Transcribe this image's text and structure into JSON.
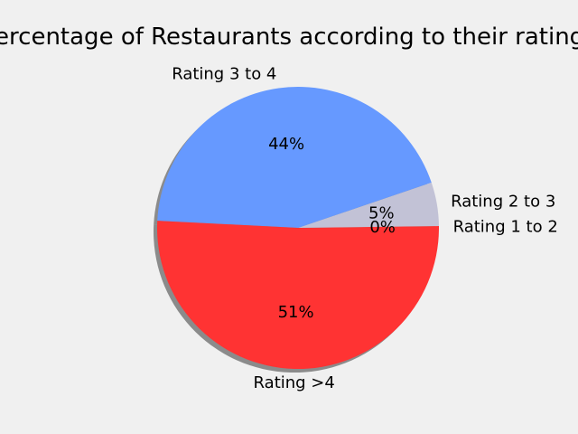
{
  "chart_data": {
    "type": "pie",
    "title": "Percentage of Restaurants according to their ratings",
    "slices": [
      {
        "label": "Rating 1 to 2",
        "value": 0.2,
        "pct_label": "0%",
        "color": "#ff3333"
      },
      {
        "label": "Rating 2 to 3",
        "value": 5.0,
        "pct_label": "5%",
        "color": "#c2c2d6"
      },
      {
        "label": "Rating 3 to 4",
        "value": 44.0,
        "pct_label": "44%",
        "color": "#6699ff"
      },
      {
        "label": "Rating >4",
        "value": 50.8,
        "pct_label": "51%",
        "color": "#ff3333"
      }
    ],
    "shadow": true,
    "background": "#f0f0f0"
  }
}
